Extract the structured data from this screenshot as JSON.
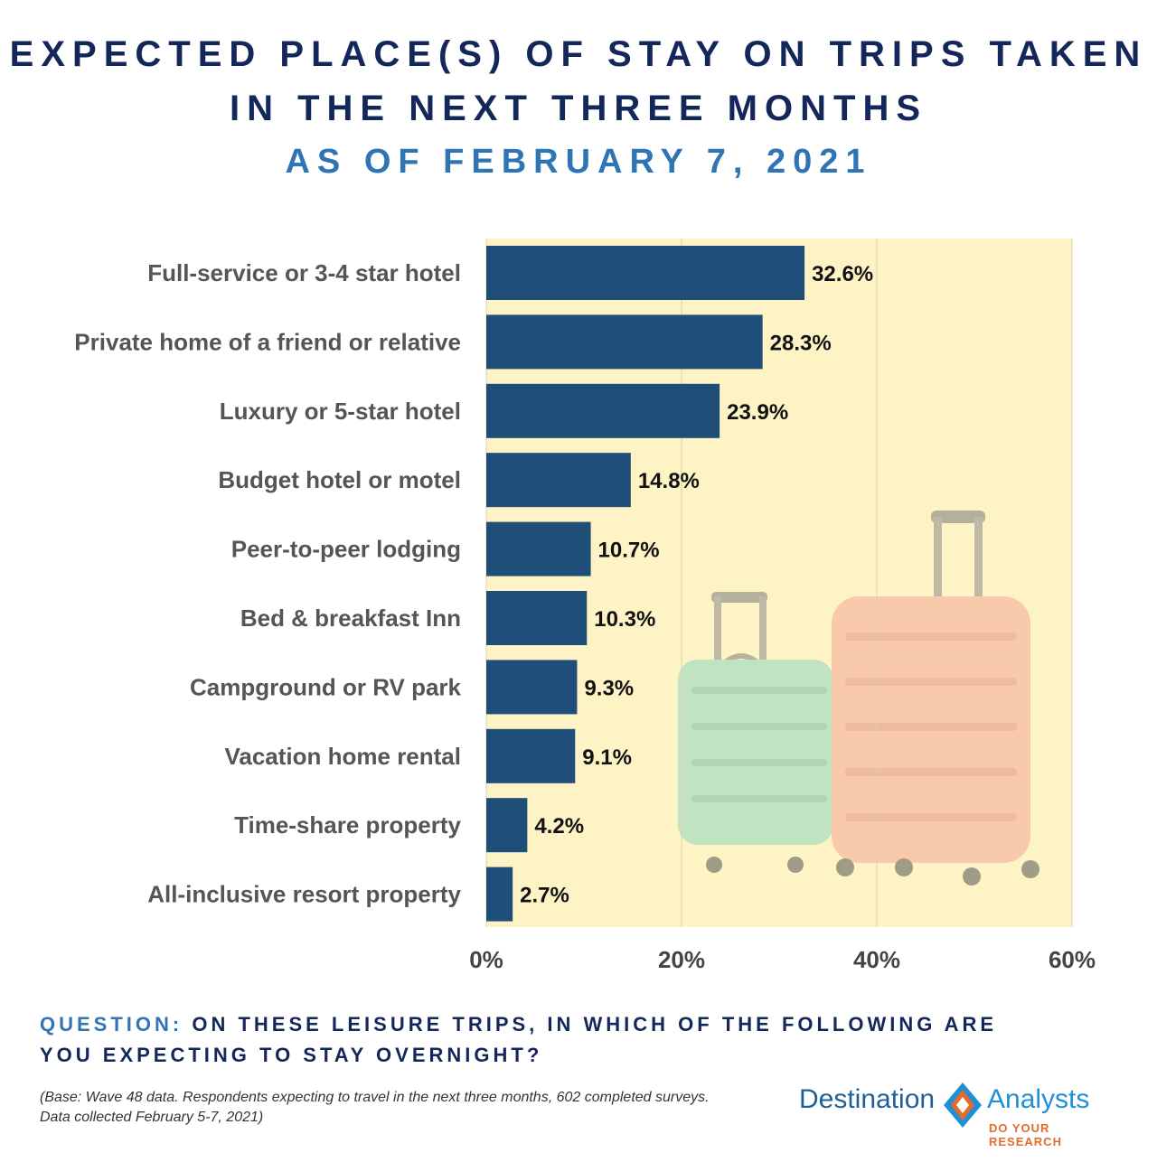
{
  "header": {
    "title_line1": "EXPECTED PLACE(S) OF STAY ON TRIPS TAKEN",
    "title_line2": "IN THE NEXT THREE MONTHS",
    "subtitle": "AS OF FEBRUARY 7, 2021"
  },
  "chart_data": {
    "type": "bar",
    "orientation": "horizontal",
    "categories": [
      "Full-service or 3-4 star hotel",
      "Private home of a friend or relative",
      "Luxury or 5-star hotel",
      "Budget hotel or motel",
      "Peer-to-peer lodging",
      "Bed & breakfast Inn",
      "Campground or RV park",
      "Vacation home rental",
      "Time-share property",
      "All-inclusive resort property"
    ],
    "values": [
      32.6,
      28.3,
      23.9,
      14.8,
      10.7,
      10.3,
      9.3,
      9.1,
      4.2,
      2.7
    ],
    "value_labels": [
      "32.6%",
      "28.3%",
      "23.9%",
      "14.8%",
      "10.7%",
      "10.3%",
      "9.3%",
      "9.1%",
      "4.2%",
      "2.7%"
    ],
    "xlim": [
      0,
      60
    ],
    "x_ticks": [
      "0%",
      "20%",
      "40%",
      "60%"
    ],
    "grid": true,
    "bar_color": "#1f4e79"
  },
  "footer": {
    "question_label": "QUESTION:",
    "question_text": "ON THESE LEISURE TRIPS, IN WHICH OF THE FOLLOWING ARE YOU EXPECTING TO STAY OVERNIGHT?",
    "base_note": "(Base: Wave 48 data. Respondents expecting to travel in the next three months, 602 completed surveys. Data collected February 5-7, 2021)"
  },
  "logo": {
    "word1": "Destination",
    "word2": "Analysts",
    "tagline": "DO YOUR RESEARCH"
  },
  "colors": {
    "title": "#14275a",
    "subtitle": "#2f75b5",
    "plot_background": "#fdf3c4",
    "luggage_teal": "#9fd8c8",
    "luggage_pink": "#f2b7a0"
  }
}
